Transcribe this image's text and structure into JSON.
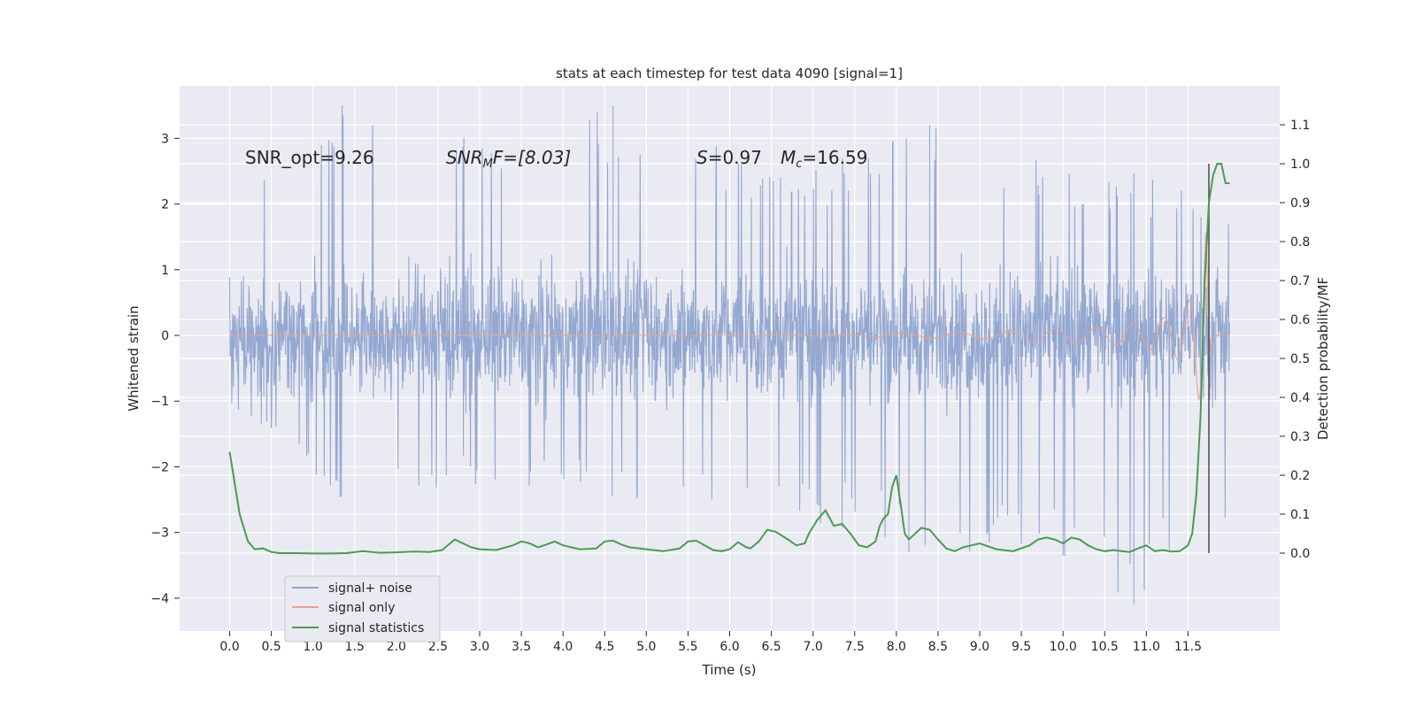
{
  "chart_data": {
    "type": "line",
    "title": "stats at each timestep for test data 4090 [signal=1]",
    "xlabel": "Time (s)",
    "ylabel": "Whitened strain",
    "y2label": "Detection probability/MF",
    "xlim": [
      -0.6,
      12.6
    ],
    "ylim": [
      -4.5,
      3.8
    ],
    "y2lim": [
      -0.2,
      1.2
    ],
    "x_ticks": [
      "0.0",
      "0.5",
      "1.0",
      "1.5",
      "2.0",
      "2.5",
      "3.0",
      "3.5",
      "4.0",
      "4.5",
      "5.0",
      "5.5",
      "6.0",
      "6.5",
      "7.0",
      "7.5",
      "8.0",
      "8.5",
      "9.0",
      "9.5",
      "10.0",
      "10.5",
      "11.0",
      "11.5"
    ],
    "y_ticks": [
      "3",
      "2",
      "1",
      "0",
      "−1",
      "−2",
      "−3",
      "−4"
    ],
    "y2_ticks": [
      "1.1",
      "1.0",
      "0.9",
      "0.8",
      "0.7",
      "0.6",
      "0.5",
      "0.4",
      "0.3",
      "0.2",
      "0.1",
      "0.0"
    ],
    "grid": true,
    "legend_position": "lower-left",
    "annotations": {
      "snr_opt": "SNR_opt=9.26",
      "snr_mf_main": "SNR",
      "snr_mf_sub": "M",
      "snr_mf_rest": "F=[8.03]",
      "s_main": "S",
      "s_rest": "=0.97",
      "mc_main": "M",
      "mc_sub": "c",
      "mc_rest": "=16.59"
    },
    "vertical_line_x": 11.75,
    "series": [
      {
        "name": "signal+ noise",
        "color": "#8fa4cf",
        "style": "dense noise, approximately ±1.5 with spikes to 3.5 / -4.1",
        "envelope_x": [
          0.0,
          1.35,
          2.3,
          4.6,
          6.9,
          8.4,
          10.0,
          10.85,
          11.5,
          12.0
        ],
        "envelope_max": [
          2.2,
          3.5,
          2.9,
          3.5,
          2.5,
          3.2,
          2.6,
          2.5,
          2.2,
          1.8
        ],
        "envelope_min": [
          -1.0,
          -2.7,
          -2.3,
          -2.5,
          -2.8,
          -3.3,
          -3.35,
          -4.1,
          -3.0,
          -3.0
        ]
      },
      {
        "name": "signal only",
        "color": "#e6a48e",
        "x": [
          0.0,
          7.5,
          8.5,
          9.5,
          10.5,
          11.0,
          11.3,
          11.5,
          11.6,
          11.68,
          11.72,
          11.75,
          11.8,
          12.0
        ],
        "amplitude": [
          0.0,
          0.01,
          0.04,
          0.07,
          0.13,
          0.2,
          0.3,
          0.5,
          0.8,
          1.3,
          1.6,
          0.5,
          0.0,
          0.0
        ]
      },
      {
        "name": "signal statistics",
        "color": "#4c9a52",
        "x": [
          0.0,
          0.12,
          0.22,
          0.3,
          0.4,
          0.5,
          0.6,
          0.8,
          1.0,
          1.2,
          1.4,
          1.6,
          1.8,
          2.0,
          2.2,
          2.4,
          2.55,
          2.7,
          2.8,
          2.9,
          3.0,
          3.2,
          3.4,
          3.5,
          3.6,
          3.7,
          3.8,
          3.9,
          4.0,
          4.2,
          4.4,
          4.5,
          4.6,
          4.7,
          4.8,
          5.0,
          5.2,
          5.4,
          5.5,
          5.6,
          5.7,
          5.8,
          5.9,
          6.0,
          6.1,
          6.2,
          6.25,
          6.35,
          6.45,
          6.55,
          6.7,
          6.8,
          6.9,
          6.95,
          7.05,
          7.15,
          7.25,
          7.35,
          7.45,
          7.55,
          7.65,
          7.75,
          7.8,
          7.85,
          7.9,
          7.95,
          8.0,
          8.05,
          8.1,
          8.15,
          8.2,
          8.3,
          8.4,
          8.5,
          8.6,
          8.7,
          8.8,
          9.0,
          9.2,
          9.4,
          9.6,
          9.7,
          9.8,
          9.9,
          10.0,
          10.1,
          10.2,
          10.3,
          10.4,
          10.5,
          10.6,
          10.7,
          10.8,
          10.9,
          11.0,
          11.1,
          11.2,
          11.3,
          11.4,
          11.5,
          11.55,
          11.6,
          11.65,
          11.7,
          11.75,
          11.8,
          11.85,
          11.9,
          11.95,
          12.0
        ],
        "values": [
          0.26,
          0.1,
          0.03,
          0.01,
          0.012,
          0.003,
          0.0,
          0.0,
          -0.001,
          -0.001,
          0.0,
          0.005,
          0.001,
          0.002,
          0.004,
          0.003,
          0.008,
          0.035,
          0.025,
          0.015,
          0.01,
          0.008,
          0.02,
          0.03,
          0.025,
          0.015,
          0.022,
          0.03,
          0.02,
          0.01,
          0.012,
          0.03,
          0.032,
          0.022,
          0.015,
          0.01,
          0.005,
          0.012,
          0.03,
          0.032,
          0.02,
          0.008,
          0.005,
          0.01,
          0.028,
          0.015,
          0.012,
          0.03,
          0.06,
          0.055,
          0.035,
          0.02,
          0.025,
          0.05,
          0.085,
          0.11,
          0.07,
          0.075,
          0.05,
          0.02,
          0.015,
          0.03,
          0.07,
          0.09,
          0.1,
          0.17,
          0.2,
          0.13,
          0.05,
          0.035,
          0.045,
          0.065,
          0.06,
          0.035,
          0.012,
          0.005,
          0.015,
          0.025,
          0.01,
          0.005,
          0.02,
          0.035,
          0.04,
          0.035,
          0.025,
          0.04,
          0.035,
          0.02,
          0.01,
          0.005,
          0.008,
          0.005,
          0.003,
          0.012,
          0.02,
          0.005,
          0.008,
          0.004,
          0.005,
          0.02,
          0.05,
          0.15,
          0.35,
          0.7,
          0.9,
          0.97,
          1.0,
          1.0,
          0.95,
          0.95
        ]
      }
    ]
  }
}
